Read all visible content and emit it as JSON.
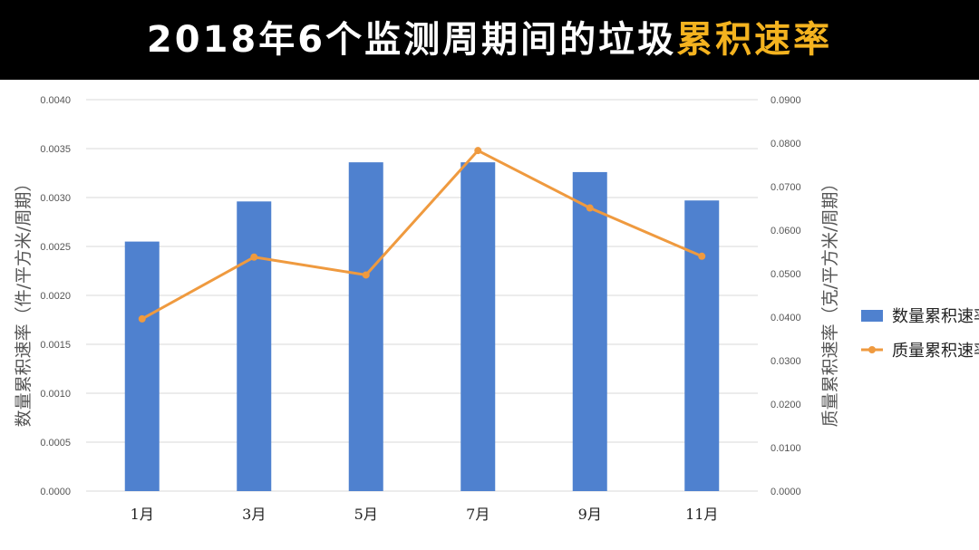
{
  "title": {
    "main": "2018年6个监测周期间的垃圾",
    "highlight": "累积速率"
  },
  "colors": {
    "header_bg": "#000000",
    "title_text": "#ffffff",
    "title_highlight": "#f4b31f",
    "bar": "#4f81cf",
    "line": "#ef9a3f",
    "grid": "#d9d9d9"
  },
  "chart_data": {
    "type": "bar",
    "categories": [
      "1月",
      "3月",
      "5月",
      "7月",
      "9月",
      "11月"
    ],
    "series": [
      {
        "name": "数量累积速率",
        "type": "bar",
        "axis": "left",
        "values": [
          0.00255,
          0.00296,
          0.00336,
          0.00336,
          0.00326,
          0.00297
        ]
      },
      {
        "name": "质量累积速率",
        "type": "line",
        "axis": "right",
        "values": [
          0.0396,
          0.0538,
          0.0497,
          0.0783,
          0.0651,
          0.054
        ]
      }
    ],
    "y_left": {
      "label": "数量累积速率（件/平方米/周期）",
      "ylim": [
        0,
        0.004
      ],
      "ticks": [
        "0.0000",
        "0.0005",
        "0.0010",
        "0.0015",
        "0.0020",
        "0.0025",
        "0.0030",
        "0.0035",
        "0.0040"
      ]
    },
    "y_right": {
      "label": "质量累积速率（克/平方米/周期）",
      "ylim": [
        0,
        0.09
      ],
      "ticks": [
        "0.0000",
        "0.0100",
        "0.0200",
        "0.0300",
        "0.0400",
        "0.0500",
        "0.0600",
        "0.0700",
        "0.0800",
        "0.0900"
      ]
    },
    "grid": true,
    "legend": "right"
  }
}
